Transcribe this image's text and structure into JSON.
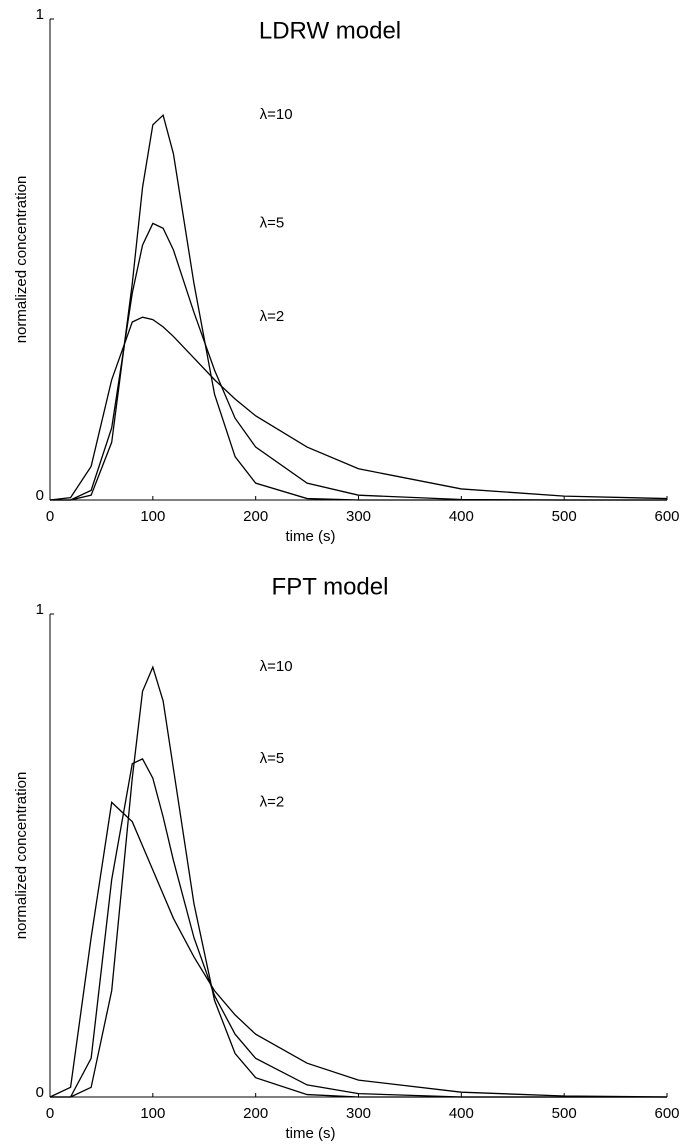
{
  "chart_data": [
    {
      "type": "line",
      "title": "LDRW model",
      "x_label": "time (s)",
      "y_label": "normalized concentration",
      "x": [
        0,
        20,
        40,
        60,
        80,
        90,
        100,
        110,
        120,
        140,
        160,
        180,
        200,
        250,
        300,
        400,
        500,
        600
      ],
      "series": [
        {
          "name": "λ=10",
          "color": "#000000",
          "values": [
            0,
            0,
            0.01,
            0.12,
            0.45,
            0.65,
            0.78,
            0.8,
            0.72,
            0.45,
            0.22,
            0.09,
            0.035,
            0.003,
            0,
            0,
            0,
            0
          ]
        },
        {
          "name": "λ=5",
          "color": "#000000",
          "values": [
            0,
            0,
            0.02,
            0.15,
            0.43,
            0.53,
            0.575,
            0.565,
            0.52,
            0.39,
            0.27,
            0.17,
            0.11,
            0.035,
            0.01,
            0.001,
            0,
            0
          ]
        },
        {
          "name": "λ=2",
          "color": "#000000",
          "values": [
            0,
            0.005,
            0.07,
            0.25,
            0.37,
            0.38,
            0.375,
            0.36,
            0.34,
            0.295,
            0.25,
            0.21,
            0.175,
            0.11,
            0.065,
            0.023,
            0.008,
            0.003
          ]
        }
      ],
      "xlim": [
        0,
        600
      ],
      "ylim": [
        0,
        1
      ],
      "xticks": [
        0,
        100,
        200,
        300,
        400,
        500,
        600
      ],
      "yticks": [
        0,
        1
      ]
    },
    {
      "type": "line",
      "title": "FPT model",
      "x_label": "time (s)",
      "y_label": "normalized concentration",
      "x": [
        0,
        20,
        40,
        60,
        80,
        90,
        100,
        110,
        120,
        140,
        160,
        180,
        200,
        250,
        300,
        400,
        500,
        600
      ],
      "series": [
        {
          "name": "λ=10",
          "color": "#000000",
          "values": [
            0,
            0,
            0.02,
            0.22,
            0.66,
            0.84,
            0.89,
            0.82,
            0.68,
            0.4,
            0.2,
            0.09,
            0.04,
            0.005,
            0,
            0,
            0,
            0
          ]
        },
        {
          "name": "λ=5",
          "color": "#000000",
          "values": [
            0,
            0,
            0.08,
            0.45,
            0.69,
            0.7,
            0.66,
            0.58,
            0.49,
            0.33,
            0.21,
            0.13,
            0.08,
            0.025,
            0.007,
            0,
            0,
            0
          ]
        },
        {
          "name": "λ=2",
          "color": "#000000",
          "values": [
            0,
            0.02,
            0.33,
            0.61,
            0.57,
            0.52,
            0.47,
            0.42,
            0.37,
            0.29,
            0.22,
            0.17,
            0.13,
            0.07,
            0.035,
            0.01,
            0.002,
            0
          ]
        }
      ],
      "xlim": [
        0,
        600
      ],
      "ylim": [
        0,
        1
      ],
      "xticks": [
        0,
        100,
        200,
        300,
        400,
        500,
        600
      ],
      "yticks": [
        0,
        1
      ]
    }
  ]
}
